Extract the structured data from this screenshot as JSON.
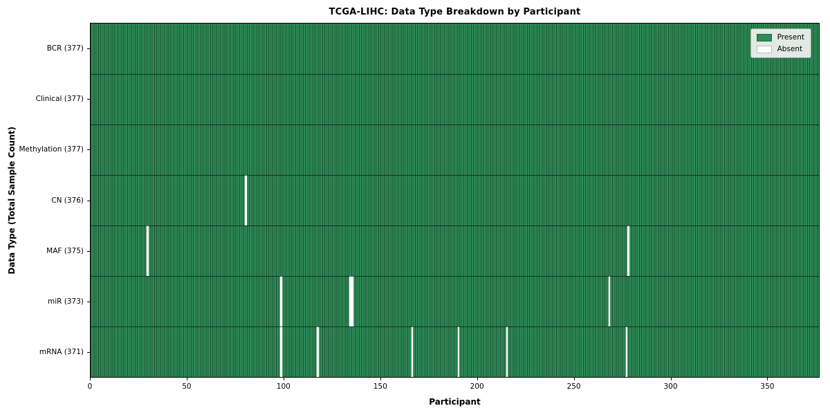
{
  "chart_data": {
    "type": "heatmap",
    "title": "TCGA-LIHC: Data Type Breakdown by Participant",
    "xlabel": "Participant",
    "ylabel": "Data Type (Total Sample Count)",
    "x_range": [
      0,
      377
    ],
    "x_ticks": [
      0,
      50,
      100,
      150,
      200,
      250,
      300,
      350
    ],
    "n_participants": 377,
    "grid": "cell-edges-only",
    "legend_position": "upper right",
    "legend": {
      "items": [
        {
          "label": "Present",
          "color": "#2e8b57"
        },
        {
          "label": "Absent",
          "color": "#ffffff"
        }
      ]
    },
    "colors": {
      "present": "#2e8b57",
      "absent": "#ffffff",
      "cell_edge": "rgba(0,0,0,0.42)",
      "row_divider": "rgba(0,0,0,0.6)",
      "frame": "#000000"
    },
    "rows": [
      {
        "label": "BCR (377)",
        "data_type": "BCR",
        "present_count": 377,
        "absent_participants": []
      },
      {
        "label": "Clinical (377)",
        "data_type": "Clinical",
        "present_count": 377,
        "absent_participants": []
      },
      {
        "label": "Methylation (377)",
        "data_type": "Methylation",
        "present_count": 377,
        "absent_participants": []
      },
      {
        "label": "CN (376)",
        "data_type": "CN",
        "present_count": 376,
        "absent_participants": [
          80
        ]
      },
      {
        "label": "MAF (375)",
        "data_type": "MAF",
        "present_count": 375,
        "absent_participants": [
          29,
          278
        ]
      },
      {
        "label": "miR (373)",
        "data_type": "miR",
        "present_count": 373,
        "absent_participants": [
          98,
          134,
          135,
          268
        ]
      },
      {
        "label": "mRNA (371)",
        "data_type": "mRNA",
        "present_count": 371,
        "absent_participants": [
          98,
          117,
          166,
          190,
          215,
          277
        ]
      }
    ]
  }
}
